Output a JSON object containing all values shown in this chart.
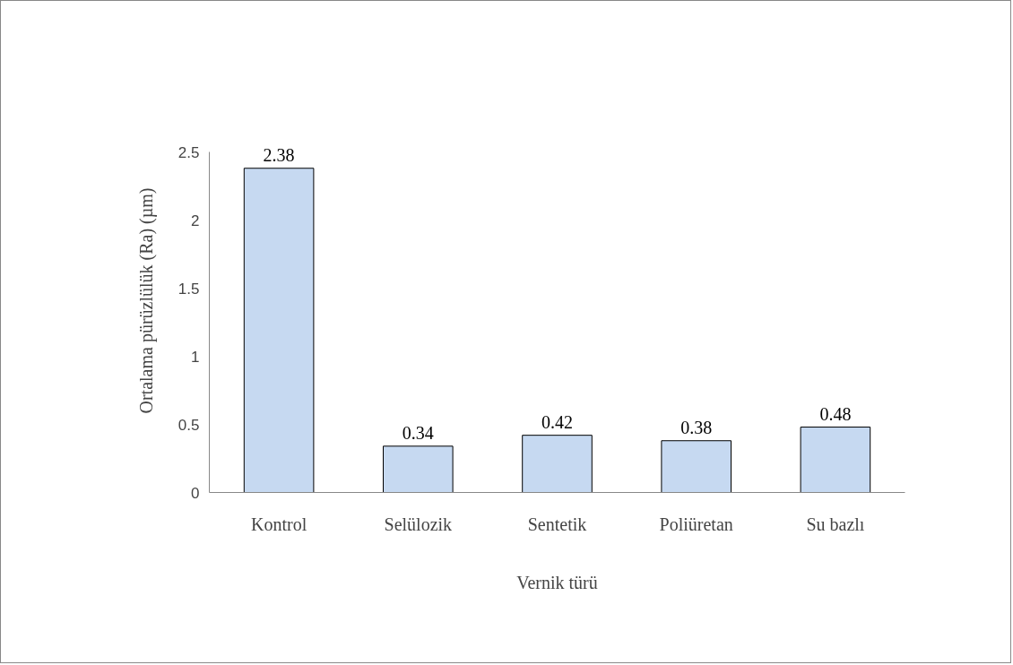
{
  "chart_data": {
    "type": "bar",
    "categories": [
      "Kontrol",
      "Selülozik",
      "Sentetik",
      "Poliüretan",
      "Su bazlı"
    ],
    "values": [
      2.38,
      0.34,
      0.42,
      0.38,
      0.48
    ],
    "color": "#c6d9f1",
    "xlabel": "Vernik türü",
    "ylabel": "Ortalama pürüzlülük (Ra) (µm)",
    "ylim": [
      0,
      2.5
    ],
    "yticks": [
      0,
      0.5,
      1,
      1.5,
      2,
      2.5
    ],
    "data_labels": true,
    "grid": false
  }
}
